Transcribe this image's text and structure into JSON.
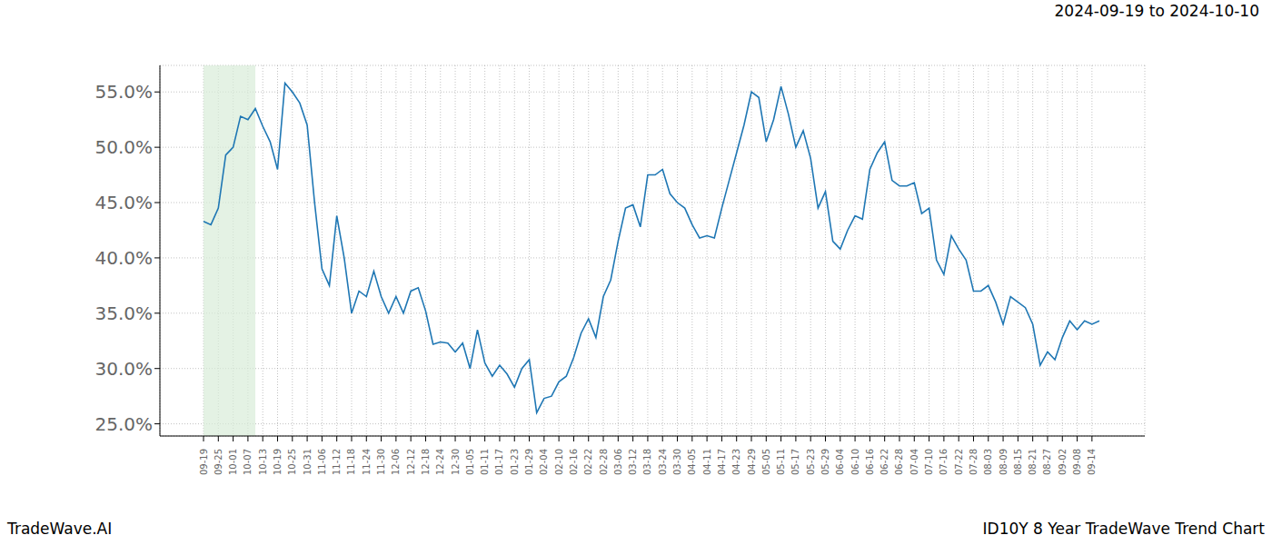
{
  "chart_data": {
    "type": "line",
    "title": "2024-09-19 to 2024-10-10",
    "annotations": [
      "TradeWave.AI",
      "ID10Y 8 Year TradeWave Trend Chart"
    ],
    "categories": [
      "09-19",
      null,
      "09-25",
      null,
      "10-01",
      null,
      "10-07",
      null,
      "10-13",
      null,
      "10-19",
      null,
      "10-25",
      null,
      "10-31",
      null,
      "11-06",
      null,
      "11-12",
      null,
      "11-18",
      null,
      "11-24",
      null,
      "11-30",
      null,
      "12-06",
      null,
      "12-12",
      null,
      "12-18",
      null,
      "12-24",
      null,
      "12-30",
      null,
      "01-05",
      null,
      "01-11",
      null,
      "01-17",
      null,
      "01-23",
      null,
      "01-29",
      null,
      "02-04",
      null,
      "02-10",
      null,
      "02-16",
      null,
      "02-22",
      null,
      "02-28",
      null,
      "03-06",
      null,
      "03-12",
      null,
      "03-18",
      null,
      "03-24",
      null,
      "03-30",
      null,
      "04-05",
      null,
      "04-11",
      null,
      "04-17",
      null,
      "04-23",
      null,
      "04-29",
      null,
      "05-05",
      null,
      "05-11",
      null,
      "05-17",
      null,
      "05-23",
      null,
      "05-29",
      null,
      "06-04",
      null,
      "06-10",
      null,
      "06-16",
      null,
      "06-22",
      null,
      "06-28",
      null,
      "07-04",
      null,
      "07-10",
      null,
      "07-16",
      null,
      "07-22",
      null,
      "07-28",
      null,
      "08-03",
      null,
      "08-09",
      null,
      "08-15",
      null,
      "08-21",
      null,
      "08-27",
      null,
      "09-02",
      null,
      "09-08",
      null,
      "09-14",
      null
    ],
    "values": [
      43.3,
      43.0,
      44.5,
      49.3,
      50.0,
      52.8,
      52.5,
      53.5,
      51.9,
      50.5,
      48.0,
      55.8,
      55.0,
      54.0,
      52.0,
      45.0,
      39.0,
      37.5,
      43.8,
      40.0,
      35.0,
      37.0,
      36.5,
      38.8,
      36.5,
      35.0,
      36.5,
      35.0,
      37.0,
      37.3,
      35.2,
      32.2,
      32.4,
      32.3,
      31.5,
      32.3,
      30.0,
      33.5,
      30.5,
      29.3,
      30.3,
      29.5,
      28.3,
      30.0,
      30.8,
      26.0,
      27.3,
      27.5,
      28.8,
      29.3,
      31.0,
      33.2,
      34.5,
      32.8,
      36.5,
      38.0,
      41.5,
      44.5,
      44.8,
      42.8,
      47.5,
      47.5,
      48.0,
      45.8,
      45.0,
      44.5,
      43.0,
      41.8,
      42.0,
      41.8,
      44.5,
      47.0,
      49.5,
      52.0,
      55.0,
      54.5,
      50.5,
      52.5,
      55.5,
      53.0,
      50.0,
      51.5,
      49.0,
      44.5,
      46.0,
      41.5,
      40.8,
      42.5,
      43.8,
      43.5,
      48.0,
      49.5,
      50.5,
      47.0,
      46.5,
      46.5,
      46.8,
      44.0,
      44.5,
      39.8,
      38.5,
      42.0,
      40.8,
      39.8,
      37.0,
      37.0,
      37.5,
      36.0,
      34.0,
      36.5,
      36.0,
      35.5,
      34.0,
      30.3,
      31.5,
      30.8,
      32.8,
      34.3,
      33.5,
      34.3,
      34.0,
      34.3
    ],
    "color": "#1f77b4",
    "ylim": [
      23.9,
      57.4
    ],
    "yticks": [
      {
        "value": 25,
        "label": "25.0%"
      },
      {
        "value": 30,
        "label": "30.0%"
      },
      {
        "value": 35,
        "label": "35.0%"
      },
      {
        "value": 40,
        "label": "40.0%"
      },
      {
        "value": 45,
        "label": "45.0%"
      },
      {
        "value": 50,
        "label": "50.0%"
      },
      {
        "value": 55,
        "label": "55.0%"
      }
    ],
    "highlight": {
      "x": [
        0,
        7
      ],
      "color": "#d8ecd8"
    },
    "grid": true
  }
}
